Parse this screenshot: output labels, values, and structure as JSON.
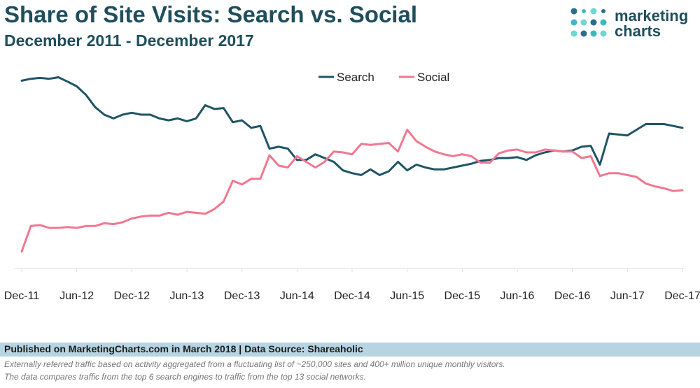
{
  "header": {
    "title": "Share of Site Visits: Search vs. Social",
    "subtitle": "December 2011 - December 2017"
  },
  "logo": {
    "line1": "marketing",
    "line2": "charts",
    "colors": [
      "#2c6d8a",
      "#3fb8c4",
      "#6fd6d0",
      "#1f4e5c"
    ]
  },
  "footer": {
    "source": "Published on MarketingCharts.com in March 2018 | Data Source: Shareaholic",
    "note1": "Externally referred traffic based on activity aggregated from a fluctuating list of ~250,000 sites and 400+ million unique monthly visitors.",
    "note2": "The data compares traffic from the top 6 search engines to traffic from the top 13 social networks."
  },
  "chart_data": {
    "type": "line",
    "title": "Share of Site Visits: Search vs. Social",
    "subtitle": "December 2011 - December 2017",
    "xlabel": "",
    "ylabel": "",
    "x_tick_labels": [
      "Dec-11",
      "Jun-12",
      "Dec-12",
      "Jun-13",
      "Dec-13",
      "Jun-14",
      "Dec-14",
      "Jun-15",
      "Dec-15",
      "Jun-16",
      "Dec-16",
      "Jun-17",
      "Dec-17"
    ],
    "x_tick_index": [
      0,
      6,
      12,
      18,
      24,
      30,
      36,
      42,
      48,
      54,
      60,
      66,
      72
    ],
    "y_axis_labels_shown": false,
    "ylim": [
      0,
      100
    ],
    "grid": false,
    "legend_position": "top-center",
    "series": [
      {
        "name": "Search",
        "color": "#1f5566",
        "values": [
          98,
          99,
          99.5,
          99,
          99.8,
          97.5,
          95,
          90.5,
          84,
          80,
          78,
          80,
          81,
          80,
          80,
          78,
          77,
          78,
          76.5,
          78,
          85,
          83,
          83.5,
          76,
          77,
          73,
          74,
          62,
          63,
          62,
          56,
          56,
          59,
          57,
          55,
          50.5,
          49,
          48,
          51,
          48,
          50,
          55,
          50.5,
          53.5,
          52,
          51,
          51,
          52,
          53,
          54,
          55.5,
          56,
          57,
          57,
          57.5,
          56,
          58.5,
          60,
          61,
          60.5,
          61,
          63,
          63.5,
          53.5,
          70,
          69.5,
          69,
          72,
          75,
          75,
          75,
          74,
          73
        ]
      },
      {
        "name": "Social",
        "color": "#f07890",
        "values": [
          7.5,
          21,
          21.5,
          20,
          20,
          20.5,
          20,
          21,
          21,
          22.5,
          22,
          23,
          25,
          26,
          26.5,
          26.5,
          28,
          27,
          28.5,
          28,
          27.5,
          30,
          34,
          45,
          43,
          46,
          46,
          58.5,
          53,
          52,
          58,
          55,
          52,
          55,
          60.5,
          60,
          59,
          64.5,
          64,
          64.5,
          65,
          60.5,
          72,
          66,
          63,
          60.5,
          59,
          58,
          59,
          58,
          54.5,
          54.5,
          59.5,
          61,
          61.5,
          60,
          60,
          61.5,
          61,
          60.5,
          60.5,
          57,
          58,
          47.5,
          49,
          49,
          48,
          47,
          43.5,
          42,
          41,
          39.5,
          40
        ]
      }
    ]
  }
}
